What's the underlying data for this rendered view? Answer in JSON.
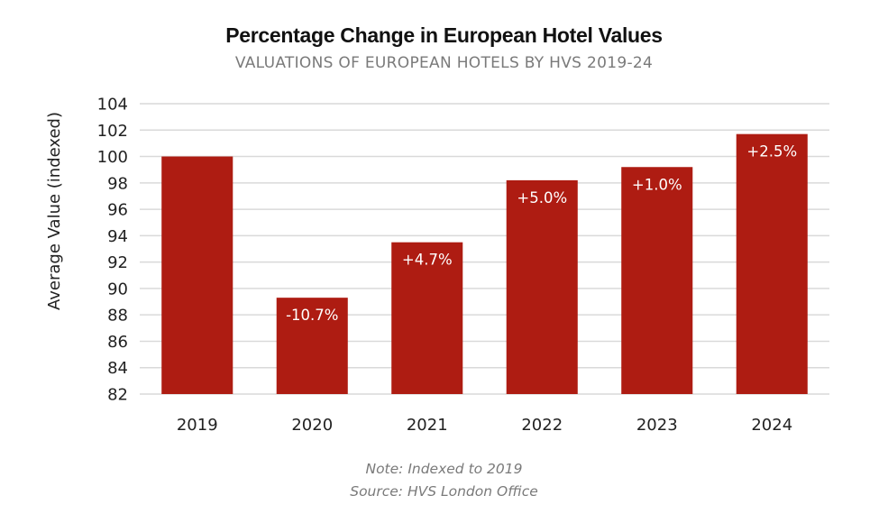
{
  "chart_data": {
    "type": "bar",
    "title": "Percentage Change in European Hotel Values",
    "subtitle": "VALUATIONS OF EUROPEAN HOTELS BY HVS 2019-24",
    "xlabel": "",
    "ylabel": "Average Value (indexed)",
    "categories": [
      "2019",
      "2020",
      "2021",
      "2022",
      "2023",
      "2024"
    ],
    "values": [
      100,
      89.3,
      93.5,
      98.2,
      99.2,
      101.7
    ],
    "data_labels": [
      "",
      "-10.7%",
      "+4.7%",
      "+5.0%",
      "+1.0%",
      "+2.5%"
    ],
    "ylim": [
      82,
      104
    ],
    "yticks": [
      82,
      84,
      86,
      88,
      90,
      92,
      94,
      96,
      98,
      100,
      102,
      104
    ],
    "grid": true,
    "legend": "none",
    "colors": {
      "bar": "#ae1c12",
      "grid": "#d9d9d9",
      "label": "#ffffff",
      "tick": "#222222"
    },
    "notes": [
      "Note: Indexed to 2019",
      "Source: HVS London Office"
    ]
  }
}
